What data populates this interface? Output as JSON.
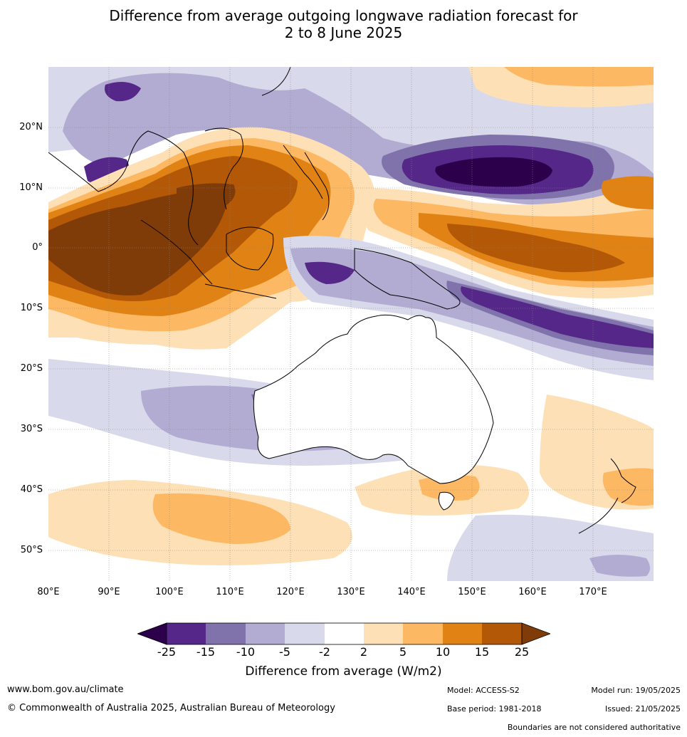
{
  "title": {
    "line1": "Difference from average outgoing longwave radiation forecast for",
    "line2": "2 to 8 June 2025"
  },
  "map": {
    "lat_ticks": [
      "20°N",
      "10°N",
      "0°",
      "10°S",
      "20°S",
      "30°S",
      "40°S",
      "50°S"
    ],
    "lon_ticks": [
      "80°E",
      "90°E",
      "100°E",
      "110°E",
      "120°E",
      "130°E",
      "140°E",
      "150°E",
      "160°E",
      "170°E"
    ],
    "colors": {
      "neg25": "#2d004b",
      "neg15": "#542788",
      "neg10": "#8073ac",
      "neg5": "#b2abd2",
      "neg2": "#d8daeb",
      "neutral": "#ffffff",
      "pos2": "#fee0b6",
      "pos5": "#fdb863",
      "pos10": "#e08214",
      "pos15": "#b35806",
      "pos25": "#7f3b08"
    }
  },
  "colorbar": {
    "labels": [
      "-25",
      "-15",
      "-10",
      "-5",
      "-2",
      "2",
      "5",
      "10",
      "15",
      "25"
    ],
    "title": "Difference from average (W/m2)"
  },
  "footer": {
    "website": "www.bom.gov.au/climate",
    "copyright": "© Commonwealth of Australia 2025, Australian Bureau of Meteorology",
    "model": "Model: ACCESS-S2",
    "base_period": "Base period: 1981-2018",
    "model_run": "Model run: 19/05/2025",
    "issued": "Issued: 21/05/2025",
    "disclaimer": "Boundaries are not considered authoritative"
  }
}
